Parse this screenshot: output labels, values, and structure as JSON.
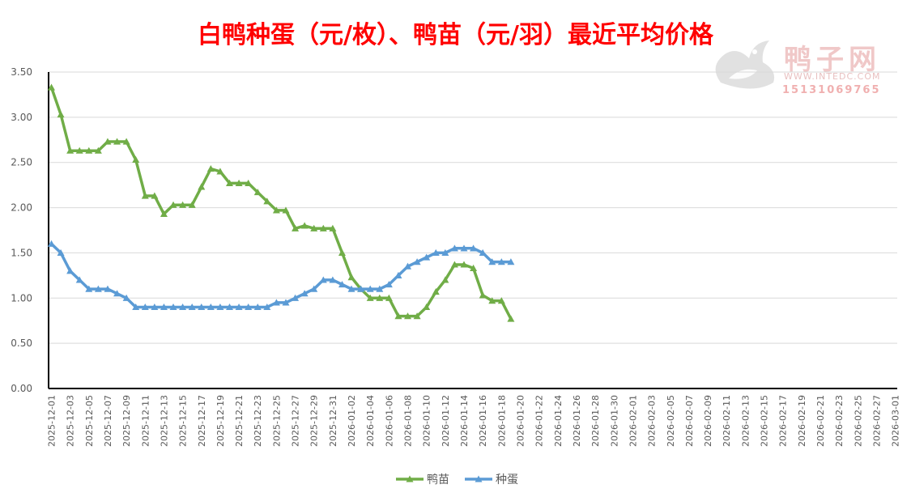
{
  "chart_data": {
    "type": "line",
    "title": "白鸭种蛋（元/枚）、鸭苗（元/羽）最近平均价格",
    "ylim": [
      0,
      3.5
    ],
    "yticks": [
      "0.00",
      "0.50",
      "1.00",
      "1.50",
      "2.00",
      "2.50",
      "3.00",
      "3.50"
    ],
    "x_start": "2025-12-01",
    "x_end": "2026-03-01",
    "x_tick_labels": [
      "2025-12-01",
      "2025-12-03",
      "2025-12-05",
      "2025-12-07",
      "2025-12-09",
      "2025-12-11",
      "2025-12-13",
      "2025-12-15",
      "2025-12-17",
      "2025-12-19",
      "2025-12-21",
      "2025-12-23",
      "2025-12-25",
      "2025-12-27",
      "2025-12-29",
      "2025-12-31",
      "2026-01-02",
      "2026-01-04",
      "2026-01-06",
      "2026-01-08",
      "2026-01-10",
      "2026-01-12",
      "2026-01-14",
      "2026-01-16",
      "2026-01-18",
      "2026-01-20",
      "2026-01-22",
      "2026-01-24",
      "2026-01-26",
      "2026-01-28",
      "2026-01-30",
      "2026-02-01",
      "2026-02-03",
      "2026-02-05",
      "2026-02-07",
      "2026-02-09",
      "2026-02-11",
      "2026-02-13",
      "2026-02-15",
      "2026-02-17",
      "2026-02-19",
      "2026-02-21",
      "2026-02-23",
      "2026-02-25",
      "2026-02-27",
      "2026-03-01"
    ],
    "grid": true,
    "legend": "bottom",
    "series": [
      {
        "name": "鸭苗",
        "color": "#70ad47",
        "values": [
          3.33,
          3.03,
          2.63,
          2.63,
          2.63,
          2.63,
          2.73,
          2.73,
          2.73,
          2.53,
          2.13,
          2.13,
          1.93,
          2.03,
          2.03,
          2.03,
          2.23,
          2.43,
          2.4,
          2.27,
          2.27,
          2.27,
          2.17,
          2.07,
          1.97,
          1.97,
          1.77,
          1.8,
          1.77,
          1.77,
          1.77,
          1.5,
          1.23,
          1.1,
          1.0,
          1.0,
          1.0,
          0.8,
          0.8,
          0.8,
          0.9,
          1.07,
          1.2,
          1.37,
          1.37,
          1.33,
          1.03,
          0.97,
          0.97,
          0.77
        ]
      },
      {
        "name": "种蛋",
        "color": "#5b9bd5",
        "values": [
          1.6,
          1.5,
          1.3,
          1.2,
          1.1,
          1.1,
          1.1,
          1.05,
          1.0,
          0.9,
          0.9,
          0.9,
          0.9,
          0.9,
          0.9,
          0.9,
          0.9,
          0.9,
          0.9,
          0.9,
          0.9,
          0.9,
          0.9,
          0.9,
          0.95,
          0.95,
          1.0,
          1.05,
          1.1,
          1.2,
          1.2,
          1.15,
          1.1,
          1.1,
          1.1,
          1.1,
          1.15,
          1.25,
          1.35,
          1.4,
          1.45,
          1.5,
          1.5,
          1.55,
          1.55,
          1.55,
          1.5,
          1.4,
          1.4,
          1.4
        ]
      }
    ]
  },
  "watermark": {
    "name": "鸭子网",
    "site": "WWW.INTEDC.COM",
    "phone": "15131069765"
  }
}
